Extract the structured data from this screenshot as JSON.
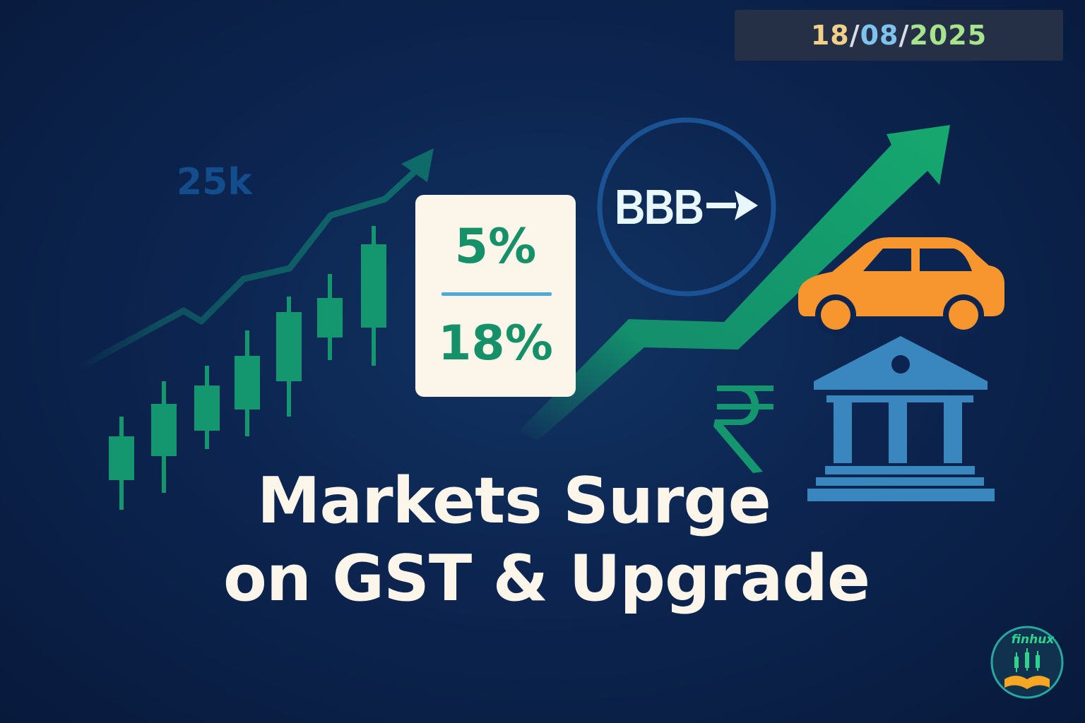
{
  "date": {
    "day": "18",
    "month": "08",
    "year": "2025",
    "separator": "/",
    "colors": {
      "day": "#f2d08a",
      "month": "#7ec3ee",
      "year": "#a7e28d",
      "separator": "#d8dde6"
    }
  },
  "index_label": "25k",
  "gst_card": {
    "new_rate": "5%",
    "old_rate": "18%"
  },
  "credit_rating": {
    "label": "BBB",
    "arrow": "→"
  },
  "headline": {
    "line1": "Markets Surge",
    "line2": "on GST & Upgrade"
  },
  "currency_symbol": "₹",
  "brand": {
    "name": "finhux"
  },
  "colors": {
    "background": "#0c2550",
    "candle_green": "#14966e",
    "trend_arrow": "#14a06e",
    "car": "#f7952e",
    "bank": "#3a86bf",
    "rupee": "#14966e",
    "rating_ring": "#1a5294"
  },
  "icons": [
    "rising-line-arrow",
    "candlestick-chart",
    "car-icon",
    "bank-icon",
    "rupee-icon",
    "trend-arrow-icon"
  ]
}
